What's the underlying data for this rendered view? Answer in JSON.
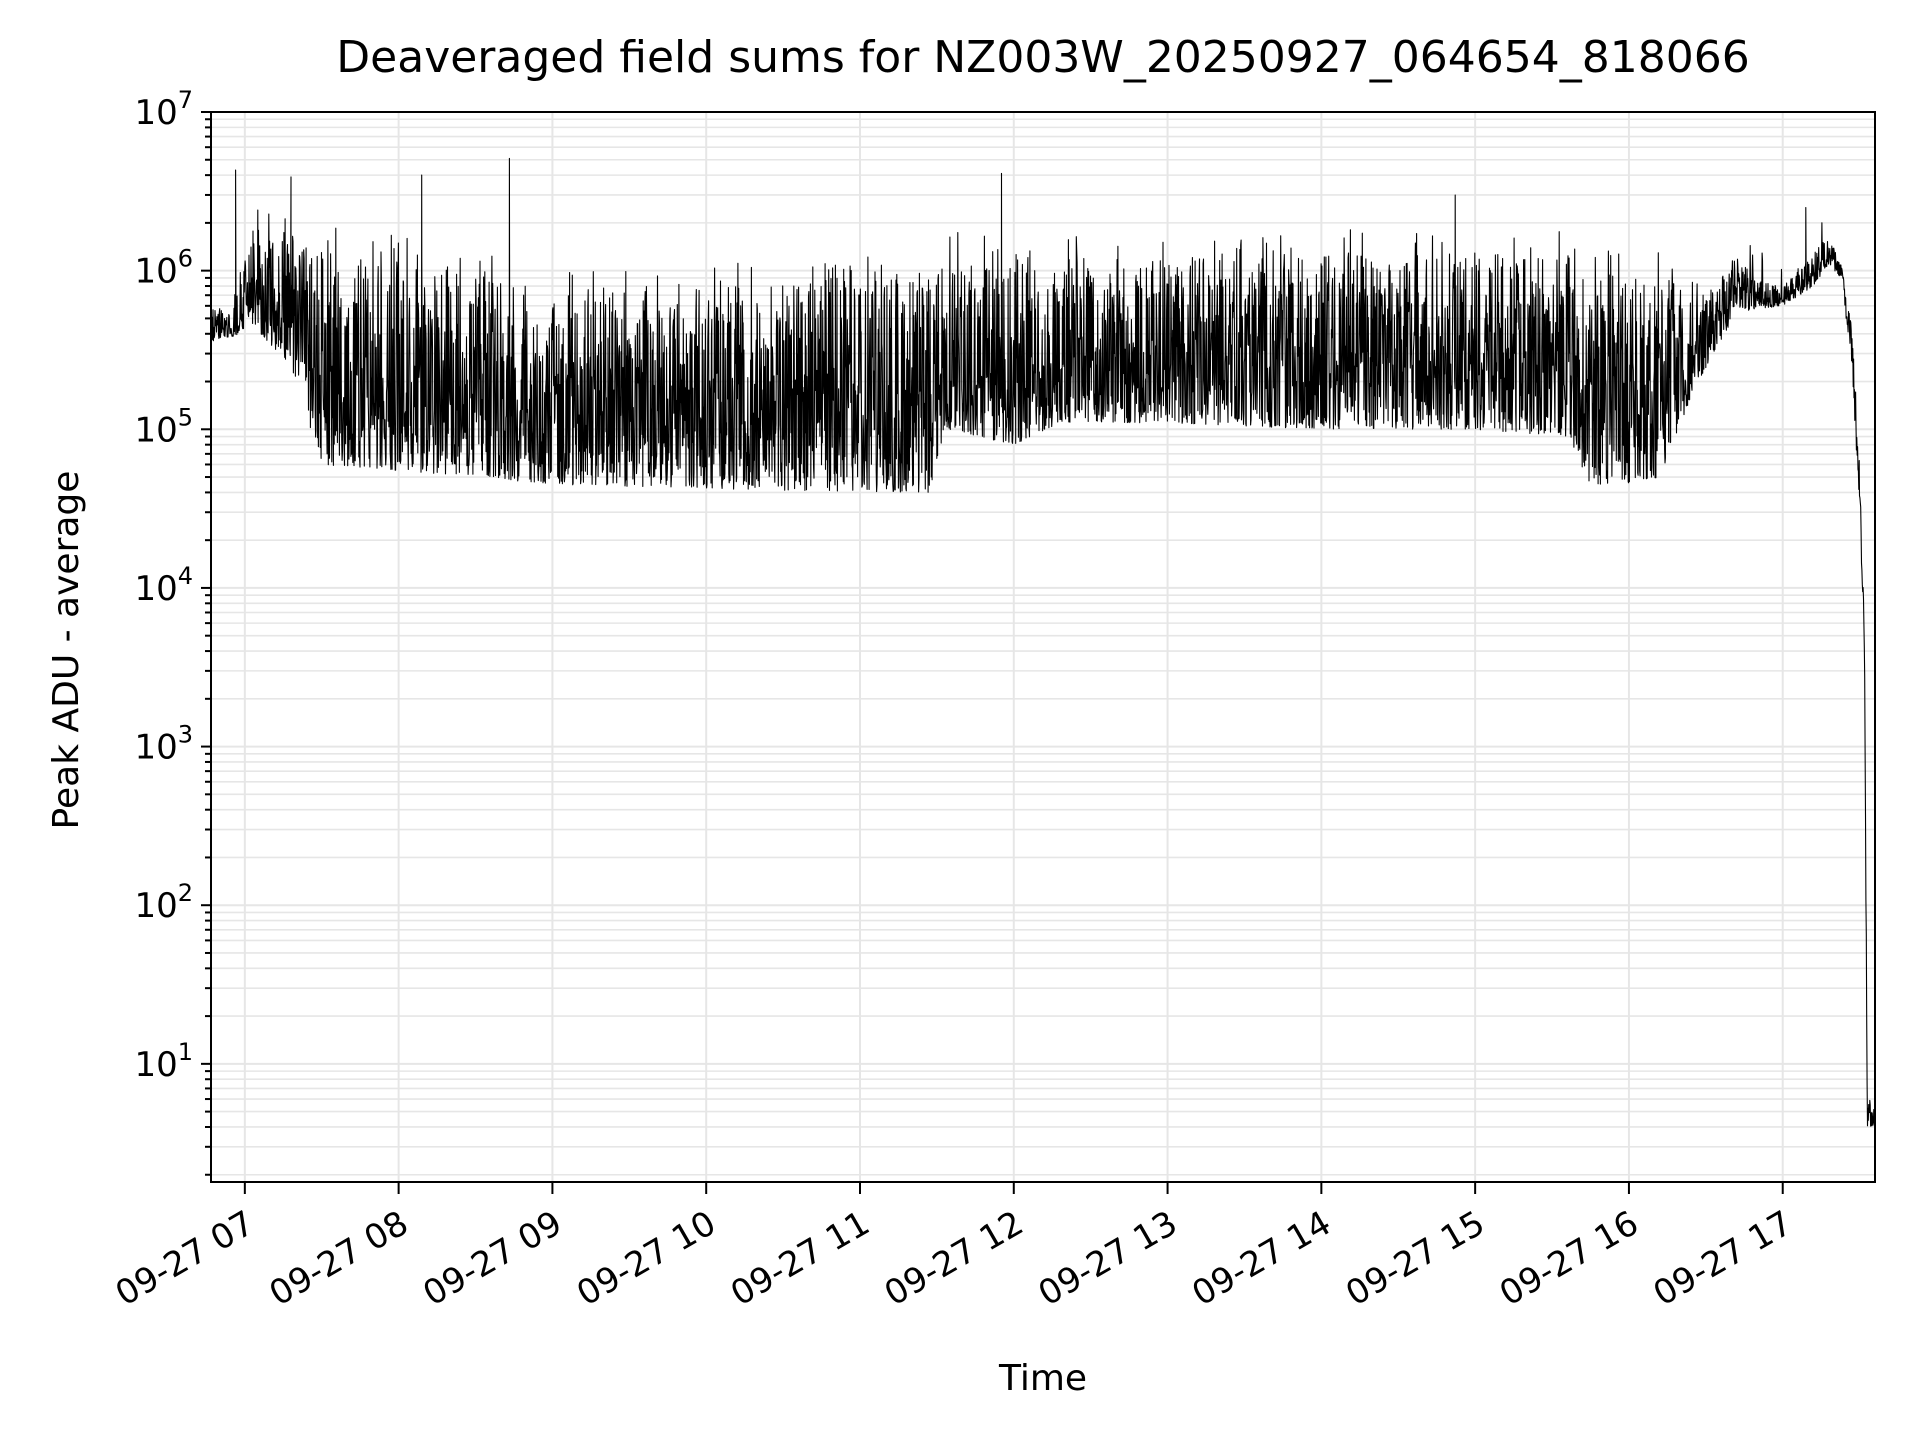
{
  "chart_data": {
    "type": "line",
    "title": "Deaveraged field sums for NZ003W_20250927_064654_818066",
    "xlabel": "Time",
    "ylabel": "Peak ADU - average",
    "yscale": "log",
    "ylim": [
      1.8,
      10000000
    ],
    "xlim_hours": [
      6.78,
      17.6
    ],
    "grid": true,
    "legend": "none",
    "line_color": "#000000",
    "grid_color": "#e6e6e6",
    "x_ticks": [
      {
        "hour": 7,
        "label": "09-27 07"
      },
      {
        "hour": 8,
        "label": "09-27 08"
      },
      {
        "hour": 9,
        "label": "09-27 09"
      },
      {
        "hour": 10,
        "label": "09-27 10"
      },
      {
        "hour": 11,
        "label": "09-27 11"
      },
      {
        "hour": 12,
        "label": "09-27 12"
      },
      {
        "hour": 13,
        "label": "09-27 13"
      },
      {
        "hour": 14,
        "label": "09-27 14"
      },
      {
        "hour": 15,
        "label": "09-27 15"
      },
      {
        "hour": 16,
        "label": "09-27 16"
      },
      {
        "hour": 17,
        "label": "09-27 17"
      }
    ],
    "y_ticks": [
      {
        "exp": 1,
        "base": "10",
        "sup": "1"
      },
      {
        "exp": 2,
        "base": "10",
        "sup": "2"
      },
      {
        "exp": 3,
        "base": "10",
        "sup": "3"
      },
      {
        "exp": 4,
        "base": "10",
        "sup": "4"
      },
      {
        "exp": 5,
        "base": "10",
        "sup": "5"
      },
      {
        "exp": 6,
        "base": "10",
        "sup": "6"
      },
      {
        "exp": 7,
        "base": "10",
        "sup": "7"
      }
    ],
    "series": [
      {
        "name": "deaveraged_field_sum",
        "profile": [
          {
            "hour": 6.78,
            "lo": 350000,
            "hi": 600000
          },
          {
            "hour": 6.92,
            "lo": 380000,
            "hi": 560000
          },
          {
            "hour": 7.05,
            "lo": 450000,
            "hi": 1800000
          },
          {
            "hour": 7.3,
            "lo": 250000,
            "hi": 1500000
          },
          {
            "hour": 7.5,
            "lo": 60000,
            "hi": 1500000
          },
          {
            "hour": 8.0,
            "lo": 55000,
            "hi": 1200000
          },
          {
            "hour": 8.5,
            "lo": 50000,
            "hi": 900000
          },
          {
            "hour": 9.0,
            "lo": 45000,
            "hi": 800000
          },
          {
            "hour": 10.0,
            "lo": 42000,
            "hi": 800000
          },
          {
            "hour": 11.45,
            "lo": 40000,
            "hi": 900000
          },
          {
            "hour": 11.55,
            "lo": 100000,
            "hi": 1200000
          },
          {
            "hour": 12.0,
            "lo": 80000,
            "hi": 1500000
          },
          {
            "hour": 12.3,
            "lo": 110000,
            "hi": 1200000
          },
          {
            "hour": 13.0,
            "lo": 110000,
            "hi": 1200000
          },
          {
            "hour": 14.0,
            "lo": 100000,
            "hi": 1300000
          },
          {
            "hour": 15.0,
            "lo": 100000,
            "hi": 1300000
          },
          {
            "hour": 15.6,
            "lo": 90000,
            "hi": 1300000
          },
          {
            "hour": 15.75,
            "lo": 45000,
            "hi": 1000000
          },
          {
            "hour": 16.0,
            "lo": 45000,
            "hi": 900000
          },
          {
            "hour": 16.2,
            "lo": 50000,
            "hi": 1000000
          },
          {
            "hour": 16.45,
            "lo": 200000,
            "hi": 600000
          },
          {
            "hour": 16.7,
            "lo": 550000,
            "hi": 1200000
          },
          {
            "hour": 17.0,
            "lo": 600000,
            "hi": 800000
          },
          {
            "hour": 17.2,
            "lo": 800000,
            "hi": 1300000
          },
          {
            "hour": 17.3,
            "lo": 1100000,
            "hi": 1700000
          },
          {
            "hour": 17.38,
            "lo": 900000,
            "hi": 1100000
          },
          {
            "hour": 17.45,
            "lo": 250000,
            "hi": 450000
          },
          {
            "hour": 17.5,
            "lo": 30000,
            "hi": 60000
          },
          {
            "hour": 17.53,
            "lo": 5000,
            "hi": 10000
          },
          {
            "hour": 17.55,
            "lo": 4,
            "hi": 6
          },
          {
            "hour": 17.6,
            "lo": 4,
            "hi": 6
          }
        ],
        "spikes": [
          {
            "hour": 6.94,
            "value": 4300000
          },
          {
            "hour": 7.3,
            "value": 3900000
          },
          {
            "hour": 8.15,
            "value": 4000000
          },
          {
            "hour": 8.72,
            "value": 5100000
          },
          {
            "hour": 11.92,
            "value": 4100000
          },
          {
            "hour": 14.87,
            "value": 3000000
          },
          {
            "hour": 17.15,
            "value": 2500000
          }
        ]
      }
    ]
  }
}
